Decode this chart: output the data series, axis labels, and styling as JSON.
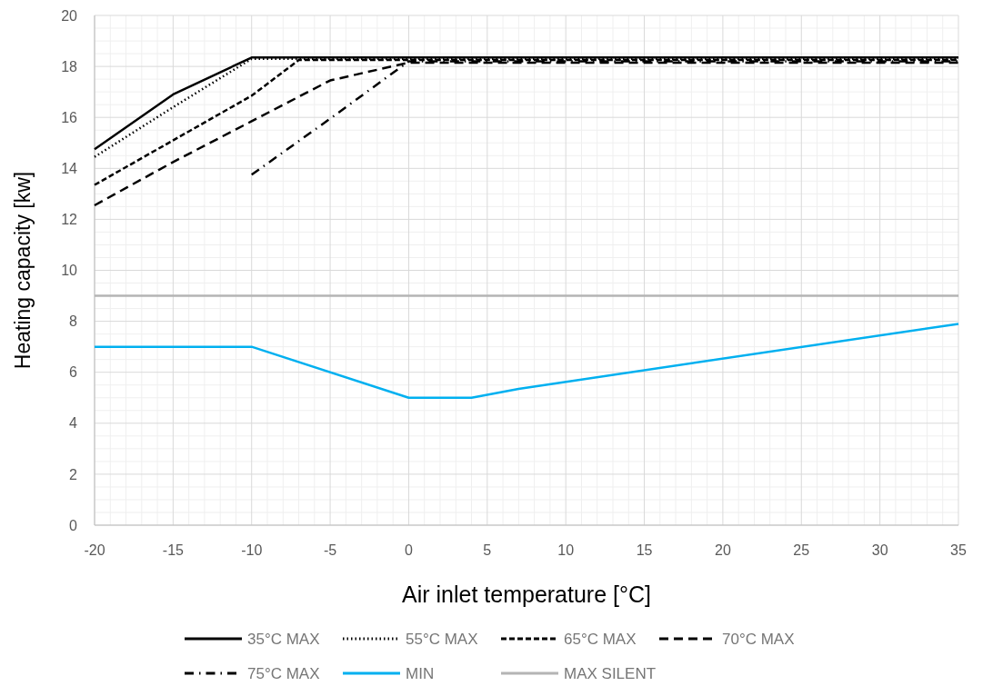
{
  "chart_data": {
    "type": "line",
    "xlabel": "Air inlet temperature [°C]",
    "ylabel": "Heating capacity [kw]",
    "xlim": [
      -20,
      35
    ],
    "xticks": [
      -20,
      -15,
      -10,
      -5,
      0,
      5,
      10,
      15,
      20,
      25,
      30,
      35
    ],
    "ylim": [
      0,
      20
    ],
    "yticks": [
      0,
      2,
      4,
      6,
      8,
      10,
      12,
      14,
      16,
      18,
      20
    ],
    "grid": true,
    "legend": "bottom",
    "marker": "none",
    "series": [
      {
        "name": "35°C MAX",
        "color": "#000000",
        "line_style": "solid",
        "x": [
          -20,
          -15,
          -10,
          35
        ],
        "values": [
          14.75,
          16.9,
          18.35,
          18.35
        ]
      },
      {
        "name": "55°C MAX",
        "color": "#000000",
        "line_style": "dotted",
        "x": [
          -20,
          -15,
          -10,
          35
        ],
        "values": [
          14.45,
          16.4,
          18.3,
          18.3
        ]
      },
      {
        "name": "65°C MAX",
        "color": "#000000",
        "line_style": "dashed",
        "x": [
          -20,
          -10,
          -7,
          35
        ],
        "values": [
          13.35,
          16.85,
          18.25,
          18.25
        ]
      },
      {
        "name": "70°C MAX",
        "color": "#000000",
        "line_style": "longdash",
        "x": [
          -20,
          -15,
          -10,
          -5,
          0,
          35
        ],
        "values": [
          12.55,
          14.25,
          15.85,
          17.45,
          18.15,
          18.15
        ]
      },
      {
        "name": "75°C MAX",
        "color": "#000000",
        "line_style": "dashdot",
        "x": [
          -10,
          -5,
          0,
          35
        ],
        "values": [
          13.75,
          15.95,
          18.2,
          18.2
        ]
      },
      {
        "name": "MIN",
        "color": "#00b0f0",
        "line_style": "solid",
        "x": [
          -20,
          -10,
          0,
          4,
          7,
          35
        ],
        "values": [
          7,
          7,
          5,
          5,
          5.35,
          7.9
        ]
      },
      {
        "name": "MAX SILENT",
        "color": "#b4b4b4",
        "line_style": "solid",
        "x": [
          -20,
          35
        ],
        "values": [
          9,
          9
        ]
      }
    ]
  }
}
